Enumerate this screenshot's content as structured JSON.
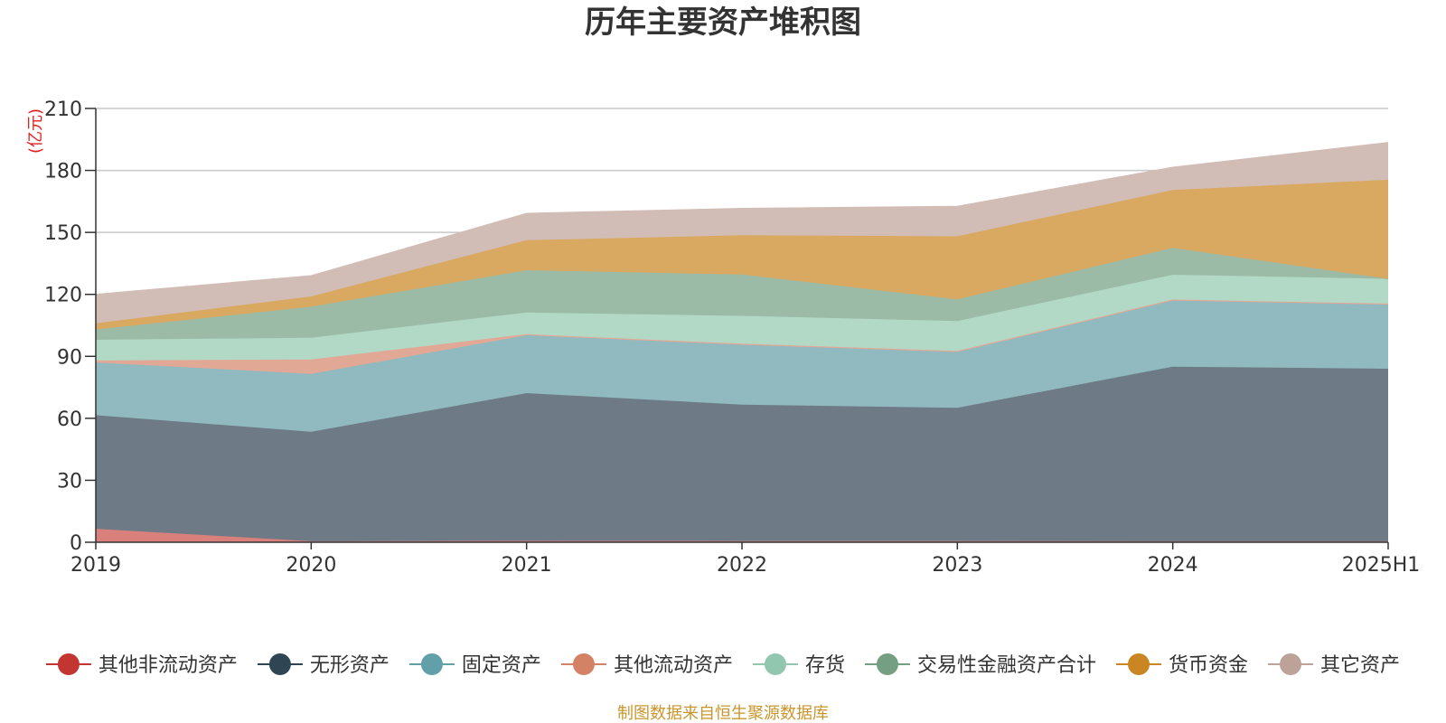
{
  "chart_data": {
    "type": "area",
    "stacked": true,
    "title": "历年主要资产堆积图",
    "unit_label": "(亿元)",
    "categories": [
      "2019",
      "2020",
      "2021",
      "2022",
      "2023",
      "2024",
      "2025H1"
    ],
    "ylim": [
      0,
      210
    ],
    "yticks": [
      0,
      30,
      60,
      90,
      120,
      150,
      180,
      210
    ],
    "grid": true,
    "legend_position": "bottom",
    "series": [
      {
        "name": "其他非流动资产",
        "color": "#c23531",
        "fill": "#d9807d",
        "values": [
          6.5,
          0.5,
          0.7,
          0.6,
          0.6,
          0.5,
          0.5
        ]
      },
      {
        "name": "无形资产",
        "color": "#2f4554",
        "fill": "#6e7b86",
        "values": [
          55,
          53,
          71.5,
          66,
          64.5,
          84.5,
          83.5
        ]
      },
      {
        "name": "固定资产",
        "color": "#61a0a8",
        "fill": "#90babf",
        "values": [
          25.5,
          28,
          28,
          29,
          27,
          32,
          31
        ]
      },
      {
        "name": "其他流动资产",
        "color": "#d48265",
        "fill": "#e2a896",
        "values": [
          1,
          7,
          0.5,
          0.5,
          0.5,
          0.5,
          0.5
        ]
      },
      {
        "name": "存货",
        "color": "#91c7ae",
        "fill": "#b2d8c6",
        "values": [
          10,
          10.5,
          10.5,
          13.5,
          14.5,
          12,
          12
        ]
      },
      {
        "name": "交易性金融资产合计",
        "color": "#749f83",
        "fill": "#9bbba6",
        "values": [
          5,
          15,
          20.5,
          20,
          10.5,
          13,
          0
        ]
      },
      {
        "name": "货币资金",
        "color": "#ca8622",
        "fill": "#d9a961",
        "values": [
          3,
          5,
          14.5,
          19,
          30.5,
          28,
          48
        ]
      },
      {
        "name": "其它资产",
        "color": "#bda29a",
        "fill": "#d2bcb6",
        "values": [
          14,
          10,
          13,
          13,
          14.5,
          11,
          18
        ]
      }
    ]
  },
  "footer": {
    "source": "制图数据来自恒生聚源数据库"
  }
}
